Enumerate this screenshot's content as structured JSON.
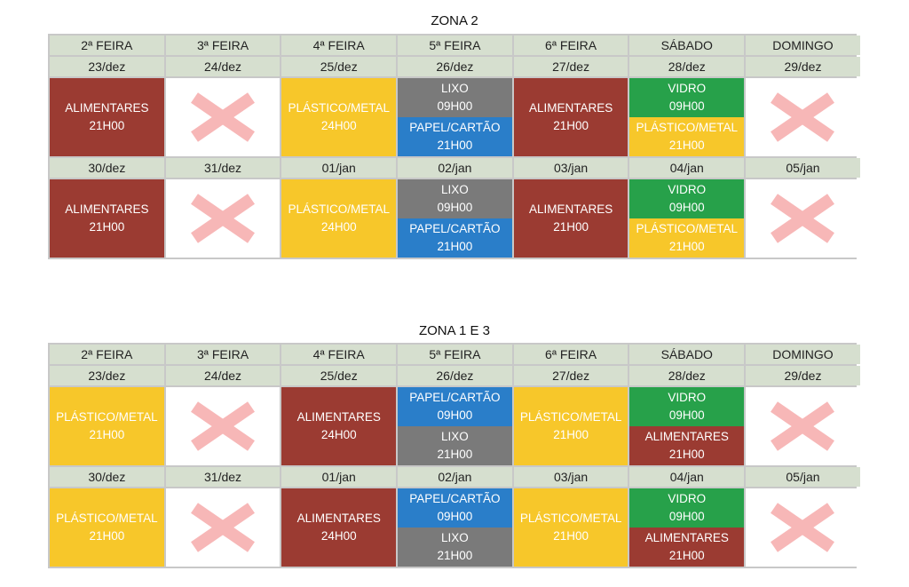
{
  "colors": {
    "alimentares": "#9b3b32",
    "plastico": "#f7c72a",
    "lixo": "#7a7a7a",
    "papel": "#2a7ec9",
    "vidro": "#27a14a",
    "cross": "#f7b7b7",
    "header_bg": "#d6dfcf"
  },
  "zones": [
    {
      "title": "ZONA 2",
      "days": [
        "2ª FEIRA",
        "3ª FEIRA",
        "4ª FEIRA",
        "5ª FEIRA",
        "6ª FEIRA",
        "SÁBADO",
        "DOMINGO"
      ],
      "weeks": [
        {
          "dates": [
            "23/dez",
            "24/dez",
            "25/dez",
            "26/dez",
            "27/dez",
            "28/dez",
            "29/dez"
          ],
          "cells": [
            [
              {
                "type": "alimentares",
                "label": "ALIMENTARES",
                "time": "21H00"
              }
            ],
            "none",
            [
              {
                "type": "plastico",
                "label": "PLÁSTICO/METAL",
                "time": "24H00"
              }
            ],
            [
              {
                "type": "lixo",
                "label": "LIXO",
                "time": "09H00"
              },
              {
                "type": "papel",
                "label": "PAPEL/CARTÃO",
                "time": "21H00"
              }
            ],
            [
              {
                "type": "alimentares",
                "label": "ALIMENTARES",
                "time": "21H00"
              }
            ],
            [
              {
                "type": "vidro",
                "label": "VIDRO",
                "time": "09H00"
              },
              {
                "type": "plastico",
                "label": "PLÁSTICO/METAL",
                "time": "21H00"
              }
            ],
            "none"
          ]
        },
        {
          "dates": [
            "30/dez",
            "31/dez",
            "01/jan",
            "02/jan",
            "03/jan",
            "04/jan",
            "05/jan"
          ],
          "cells": [
            [
              {
                "type": "alimentares",
                "label": "ALIMENTARES",
                "time": "21H00"
              }
            ],
            "none",
            [
              {
                "type": "plastico",
                "label": "PLÁSTICO/METAL",
                "time": "24H00"
              }
            ],
            [
              {
                "type": "lixo",
                "label": "LIXO",
                "time": "09H00"
              },
              {
                "type": "papel",
                "label": "PAPEL/CARTÃO",
                "time": "21H00"
              }
            ],
            [
              {
                "type": "alimentares",
                "label": "ALIMENTARES",
                "time": "21H00"
              }
            ],
            [
              {
                "type": "vidro",
                "label": "VIDRO",
                "time": "09H00"
              },
              {
                "type": "plastico",
                "label": "PLÁSTICO/METAL",
                "time": "21H00"
              }
            ],
            "none"
          ]
        }
      ]
    },
    {
      "title": "ZONA 1 E 3",
      "days": [
        "2ª FEIRA",
        "3ª FEIRA",
        "4ª FEIRA",
        "5ª FEIRA",
        "6ª FEIRA",
        "SÁBADO",
        "DOMINGO"
      ],
      "weeks": [
        {
          "dates": [
            "23/dez",
            "24/dez",
            "25/dez",
            "26/dez",
            "27/dez",
            "28/dez",
            "29/dez"
          ],
          "cells": [
            [
              {
                "type": "plastico",
                "label": "PLÁSTICO/METAL",
                "time": "21H00"
              }
            ],
            "none",
            [
              {
                "type": "alimentares",
                "label": "ALIMENTARES",
                "time": "24H00"
              }
            ],
            [
              {
                "type": "papel",
                "label": "PAPEL/CARTÃO",
                "time": "09H00"
              },
              {
                "type": "lixo",
                "label": "LIXO",
                "time": "21H00"
              }
            ],
            [
              {
                "type": "plastico",
                "label": "PLÁSTICO/METAL",
                "time": "21H00"
              }
            ],
            [
              {
                "type": "vidro",
                "label": "VIDRO",
                "time": "09H00"
              },
              {
                "type": "alimentares",
                "label": "ALIMENTARES",
                "time": "21H00"
              }
            ],
            "none"
          ]
        },
        {
          "dates": [
            "30/dez",
            "31/dez",
            "01/jan",
            "02/jan",
            "03/jan",
            "04/jan",
            "05/jan"
          ],
          "cells": [
            [
              {
                "type": "plastico",
                "label": "PLÁSTICO/METAL",
                "time": "21H00"
              }
            ],
            "none",
            [
              {
                "type": "alimentares",
                "label": "ALIMENTARES",
                "time": "24H00"
              }
            ],
            [
              {
                "type": "papel",
                "label": "PAPEL/CARTÃO",
                "time": "09H00"
              },
              {
                "type": "lixo",
                "label": "LIXO",
                "time": "21H00"
              }
            ],
            [
              {
                "type": "plastico",
                "label": "PLÁSTICO/METAL",
                "time": "21H00"
              }
            ],
            [
              {
                "type": "vidro",
                "label": "VIDRO",
                "time": "09H00"
              },
              {
                "type": "alimentares",
                "label": "ALIMENTARES",
                "time": "21H00"
              }
            ],
            "none"
          ]
        }
      ]
    }
  ]
}
